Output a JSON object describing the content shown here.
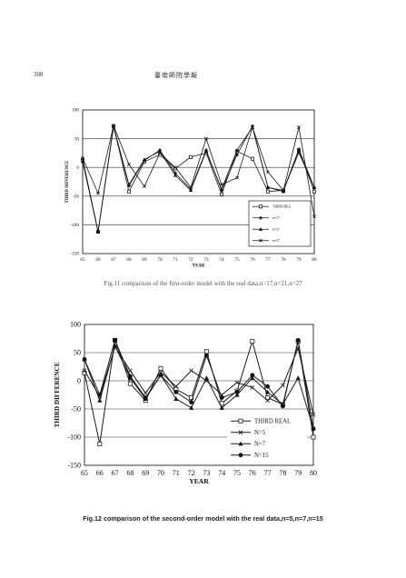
{
  "header": {
    "page_number": "308",
    "journal": "臺南師院學報"
  },
  "figures": [
    {
      "caption": "Fig.11 comparison of the first-order model with the real data,n=17,n=21,n=27",
      "chart_data": {
        "type": "line",
        "xlabel": "YEAR",
        "ylabel": "THIRD DIFFERENCE",
        "categories": [
          "65",
          "66",
          "67",
          "68",
          "69",
          "70",
          "71",
          "72",
          "73",
          "74",
          "75",
          "76",
          "77",
          "78",
          "79",
          "80"
        ],
        "ylim": [
          -150,
          100
        ],
        "yticks": [
          100,
          50,
          0,
          -50,
          -100,
          -150
        ],
        "grid": true,
        "legend_position": "bottom-right",
        "series": [
          {
            "name": "THIRD REA",
            "marker": "square-open",
            "values": [
              13,
              -112,
              72,
              -42,
              10,
              22,
              -2,
              18,
              25,
              -47,
              28,
              15,
              -42,
              -40,
              30,
              -42
            ]
          },
          {
            "name": "n=17",
            "marker": "diamond",
            "values": [
              15,
              -112,
              70,
              -32,
              12,
              30,
              -10,
              -38,
              30,
              -40,
              22,
              72,
              -35,
              -40,
              26,
              -35
            ]
          },
          {
            "name": "n=21",
            "marker": "triangle",
            "values": [
              10,
              -112,
              72,
              -30,
              14,
              28,
              -14,
              -40,
              28,
              -38,
              30,
              70,
              -35,
              -42,
              32,
              -35
            ]
          },
          {
            "name": "n=27",
            "marker": "x",
            "values": [
              16,
              -45,
              73,
              5,
              -33,
              25,
              0,
              -35,
              50,
              -30,
              -18,
              70,
              -8,
              -40,
              70,
              -85
            ]
          }
        ]
      }
    },
    {
      "caption": "Fig.12 comparison of the second-order model with the real data,n=5,n=7,n=15",
      "chart_data": {
        "type": "line",
        "xlabel": "YEAR",
        "ylabel": "THIRD DIFFERENCE",
        "categories": [
          "65",
          "66",
          "67",
          "68",
          "69",
          "70",
          "71",
          "72",
          "73",
          "74",
          "75",
          "76",
          "77",
          "78",
          "79",
          "80"
        ],
        "ylim": [
          -150,
          100
        ],
        "yticks": [
          100,
          50,
          0,
          -50,
          -100,
          -150
        ],
        "grid": true,
        "legend_position": "bottom-right",
        "series": [
          {
            "name": "THIRD REAL",
            "marker": "square-open",
            "values": [
              14,
              -112,
              72,
              -5,
              -35,
              22,
              -15,
              -30,
              52,
              -40,
              -18,
              70,
              -30,
              -42,
              70,
              -100
            ]
          },
          {
            "name": "N=5",
            "marker": "x",
            "values": [
              18,
              -28,
              60,
              18,
              -22,
              15,
              -10,
              18,
              0,
              -25,
              -3,
              -12,
              -35,
              -8,
              58,
              -60
            ]
          },
          {
            "name": "N=7",
            "marker": "triangle",
            "values": [
              38,
              -35,
              62,
              5,
              -32,
              10,
              -32,
              -48,
              5,
              -48,
              -25,
              5,
              -20,
              -42,
              5,
              -85
            ]
          },
          {
            "name": "N=15",
            "marker": "dot",
            "values": [
              38,
              -25,
              72,
              8,
              -30,
              10,
              -20,
              -38,
              45,
              -30,
              -20,
              10,
              -10,
              -45,
              72,
              -85
            ]
          }
        ]
      }
    }
  ]
}
